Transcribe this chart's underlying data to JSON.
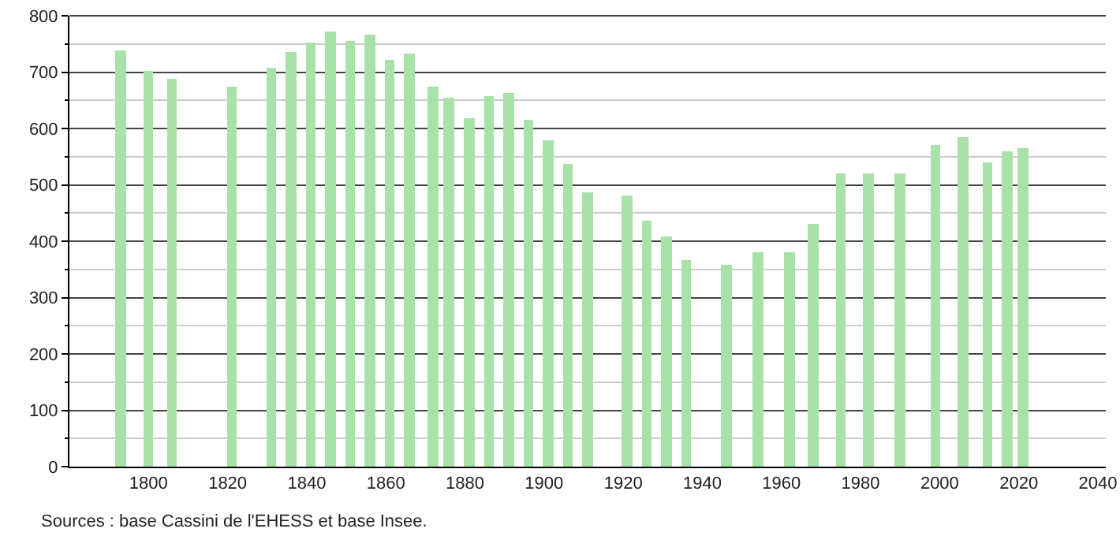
{
  "chart_data": {
    "type": "bar",
    "x": [
      1793,
      1800,
      1806,
      1821,
      1831,
      1836,
      1841,
      1846,
      1851,
      1856,
      1861,
      1866,
      1872,
      1876,
      1881,
      1886,
      1891,
      1896,
      1901,
      1906,
      1911,
      1921,
      1926,
      1931,
      1936,
      1946,
      1954,
      1962,
      1968,
      1975,
      1982,
      1990,
      1999,
      2006,
      2012,
      2017,
      2021
    ],
    "values": [
      738,
      703,
      689,
      673,
      708,
      736,
      752,
      772,
      755,
      766,
      722,
      733,
      675,
      654,
      618,
      656,
      663,
      615,
      579,
      537,
      487,
      482,
      435,
      409,
      366,
      358,
      380,
      380,
      430,
      521,
      521,
      521,
      570,
      584,
      540,
      559,
      565
    ],
    "color": "#a8e2a8",
    "xlim": [
      1780,
      2042
    ],
    "xticks": [
      1800,
      1820,
      1840,
      1860,
      1880,
      1900,
      1920,
      1940,
      1960,
      1980,
      2000,
      2020,
      2040
    ],
    "ylim": [
      0,
      800
    ],
    "yticks": [
      0,
      {
        "value": 50,
        "label": null
      },
      100,
      {
        "value": 150,
        "label": null
      },
      200,
      {
        "value": 250,
        "label": null
      },
      300,
      {
        "value": 350,
        "label": null
      },
      400,
      {
        "value": 450,
        "label": null
      },
      500,
      {
        "value": 550,
        "label": null
      },
      600,
      {
        "value": 650,
        "label": null
      },
      700,
      {
        "value": 750,
        "label": null
      },
      800
    ],
    "grid": "y",
    "annotations": [
      "Sources : base Cassini de l'EHESS et base Insee."
    ]
  }
}
